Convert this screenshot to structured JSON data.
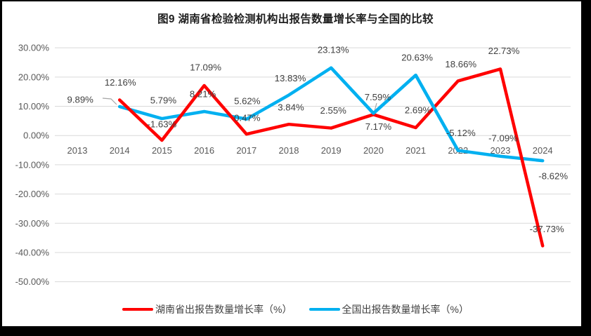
{
  "title": "图9 湖南省检验检测机构出报告数量增长率与全国的比较",
  "chart_data": {
    "type": "line",
    "categories": [
      "2013",
      "2014",
      "2015",
      "2016",
      "2017",
      "2018",
      "2019",
      "2020",
      "2021",
      "2022",
      "2023",
      "2024"
    ],
    "series": [
      {
        "name": "湖南省出报告数量增长率（%）",
        "color": "#FF0000",
        "values": [
          null,
          12.16,
          -1.63,
          17.09,
          0.47,
          3.84,
          2.55,
          7.17,
          2.69,
          18.66,
          22.73,
          -37.73
        ],
        "labels": [
          null,
          "12.16%",
          "-1.63%",
          "17.09%",
          "0.47%",
          "3.84%",
          "2.55%",
          "7.17%",
          "2.69%",
          "18.66%",
          "22.73%",
          "-37.73%"
        ],
        "label_offsets": [
          null,
          [
            1,
            -25
          ],
          [
            0,
            -23
          ],
          [
            2,
            -26
          ],
          [
            1,
            -23
          ],
          [
            3,
            -24
          ],
          [
            3,
            -25
          ],
          [
            7,
            17
          ],
          [
            3,
            -25
          ],
          [
            4,
            -24
          ],
          [
            5,
            -26
          ],
          [
            6,
            -24
          ]
        ]
      },
      {
        "name": "全国出报告数量增长率（%）",
        "color": "#00B0F0",
        "values": [
          null,
          9.89,
          5.79,
          8.21,
          5.62,
          13.83,
          23.13,
          7.59,
          20.63,
          -5.12,
          -7.09,
          -8.62
        ],
        "labels": [
          null,
          "9.89%",
          "5.79%",
          "8.21%",
          "5.62%",
          "13.83%",
          "23.13%",
          "7.59%",
          "20.63%",
          "-5.12%",
          "-7.09%",
          "-8.62%"
        ],
        "label_offsets": [
          null,
          [
            -56,
            -10
          ],
          [
            2,
            -26
          ],
          [
            -2,
            -25
          ],
          [
            1,
            -26
          ],
          [
            2,
            -24
          ],
          [
            3,
            -26
          ],
          [
            6,
            -23
          ],
          [
            2,
            -25
          ],
          [
            4,
            -25
          ],
          [
            4,
            -26
          ],
          [
            15,
            22
          ]
        ]
      }
    ],
    "ylim": [
      -50,
      30
    ],
    "yticks": [
      {
        "value": 30,
        "label": "30.00%"
      },
      {
        "value": 20,
        "label": "20.00%"
      },
      {
        "value": 10,
        "label": "10.00%"
      },
      {
        "value": 0,
        "label": "0.00%"
      },
      {
        "value": -10,
        "label": "-10.00%"
      },
      {
        "value": -20,
        "label": "-20.00%"
      },
      {
        "value": -30,
        "label": "-30.00%"
      },
      {
        "value": -40,
        "label": "-40.00%"
      },
      {
        "value": -50,
        "label": "-50.00%"
      }
    ],
    "grid": true,
    "legend_position": "bottom",
    "leader_lines": [
      {
        "points": [
          [
            146,
            140
          ],
          [
            158,
            141
          ],
          [
            166,
            149
          ]
        ]
      },
      {
        "points": [
          [
            536,
            147
          ],
          [
            533,
            158
          ]
        ]
      }
    ],
    "z_overlay": {
      "series": 1,
      "from": 6,
      "to": 9
    },
    "colors": {
      "gridline": "#D9D9D9",
      "axis_text": "#595959",
      "data_label": "#404040",
      "leader": "#A6A6A6",
      "background": "#FFFFFF",
      "frame": "#000000"
    }
  }
}
